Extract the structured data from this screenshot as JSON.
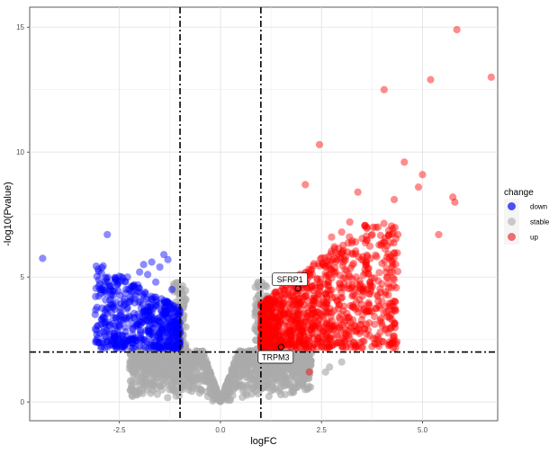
{
  "chart_data": {
    "type": "scatter",
    "title": "",
    "xlabel": "logFC",
    "ylabel": "-log10(Pvalue)",
    "xlim": [
      -4.72,
      6.86
    ],
    "ylim": [
      -0.75,
      15.8
    ],
    "x_ticks": [
      -2.5,
      0.0,
      2.5,
      5.0
    ],
    "x_tick_labels": [
      "-2.5",
      "0.0",
      "2.5",
      "5.0"
    ],
    "y_ticks": [
      0,
      5,
      10,
      15
    ],
    "y_tick_labels": [
      "0",
      "5",
      "10",
      "15"
    ],
    "grid": true,
    "legend_position": "right",
    "thresholds": {
      "logFC": [
        -1,
        1
      ],
      "neg_log10_p": 2
    },
    "legend": {
      "title": "change",
      "entries": [
        {
          "label": "down",
          "color": "#4d4df5"
        },
        {
          "label": "stable",
          "color": "#c8c8c8"
        },
        {
          "label": "up",
          "color": "#f06e6e"
        }
      ]
    },
    "series": [
      {
        "name": "down",
        "color": "#0000ff",
        "points": [
          [
            -4.4,
            5.75
          ],
          [
            -2.8,
            6.7
          ],
          [
            -2.5,
            3.1
          ],
          [
            -2.6,
            4.9
          ],
          [
            -2.3,
            5.0
          ],
          [
            -2.0,
            5.2
          ],
          [
            -1.9,
            5.5
          ],
          [
            -1.8,
            5.1
          ],
          [
            -1.7,
            5.6
          ],
          [
            -1.6,
            4.8
          ],
          [
            -1.5,
            5.4
          ],
          [
            -1.4,
            5.9
          ],
          [
            -1.3,
            5.7
          ],
          [
            -2.7,
            4.3
          ],
          [
            -2.9,
            3.4
          ],
          [
            -3.1,
            3.5
          ],
          [
            -2.2,
            4.4
          ],
          [
            -1.6,
            4.2
          ],
          [
            -1.2,
            4.5
          ],
          [
            -2.4,
            2.5
          ],
          [
            -2.6,
            2.6
          ]
        ]
      },
      {
        "name": "stable",
        "color": "#aaaaaa",
        "points": [
          [
            -1.2,
            0.5
          ],
          [
            -0.8,
            1.0
          ],
          [
            0.8,
            0.9
          ],
          [
            1.3,
            0.6
          ],
          [
            -1.8,
            0.5
          ],
          [
            1.6,
            0.3
          ],
          [
            3.0,
            1.6
          ],
          [
            2.6,
            1.2
          ],
          [
            2.7,
            1.4
          ],
          [
            -2.2,
            1.3
          ],
          [
            -1.9,
            0.7
          ]
        ]
      },
      {
        "name": "up",
        "color": "#ff0000",
        "points": [
          [
            5.85,
            14.9
          ],
          [
            6.7,
            13.0
          ],
          [
            5.2,
            12.9
          ],
          [
            4.05,
            12.5
          ],
          [
            2.45,
            10.3
          ],
          [
            4.55,
            9.6
          ],
          [
            5.0,
            9.1
          ],
          [
            4.9,
            8.6
          ],
          [
            3.4,
            8.4
          ],
          [
            2.1,
            8.7
          ],
          [
            5.75,
            8.2
          ],
          [
            5.8,
            8.0
          ],
          [
            4.3,
            8.1
          ],
          [
            5.4,
            6.7
          ],
          [
            2.5,
            2.2
          ],
          [
            2.2,
            1.2
          ],
          [
            1.7,
            2.3
          ],
          [
            3.1,
            2.9
          ],
          [
            3.4,
            3.6
          ],
          [
            4.1,
            5.2
          ],
          [
            3.6,
            5.6
          ],
          [
            3.0,
            6.8
          ],
          [
            2.75,
            6.6
          ],
          [
            3.2,
            7.2
          ],
          [
            3.9,
            7.0
          ]
        ]
      }
    ],
    "annotations": [
      {
        "label": "SFRP1",
        "x": 1.92,
        "y": 4.55
      },
      {
        "label": "TRPM3",
        "x": 1.5,
        "y": 2.2
      }
    ]
  }
}
